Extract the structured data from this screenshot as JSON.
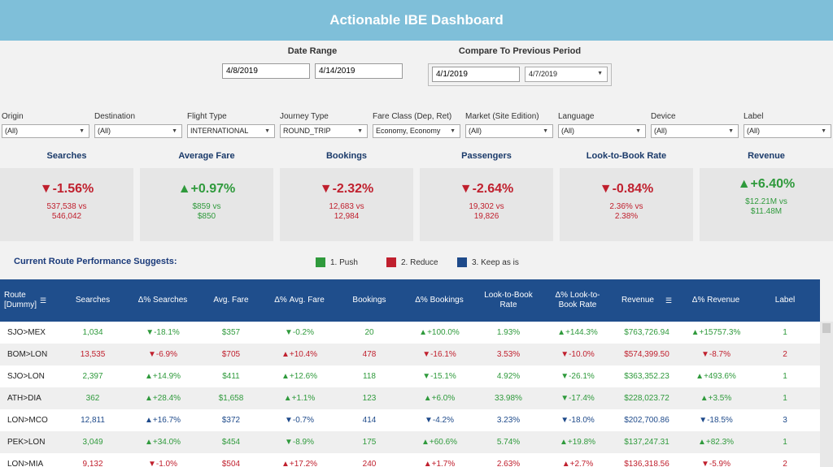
{
  "title": "Actionable IBE Dashboard",
  "date_range": {
    "label": "Date Range",
    "start": "4/8/2019",
    "end": "4/14/2019"
  },
  "compare": {
    "label": "Compare To Previous Period",
    "start": "4/1/2019",
    "end": "4/7/2019"
  },
  "filters": [
    {
      "label": "Origin",
      "value": "(All)"
    },
    {
      "label": "Destination",
      "value": "(All)"
    },
    {
      "label": "Flight Type",
      "value": "INTERNATIONAL"
    },
    {
      "label": "Journey Type",
      "value": "ROUND_TRIP"
    },
    {
      "label": "Fare Class (Dep, Ret)",
      "value": "Economy, Economy"
    },
    {
      "label": "Market (Site Edition)",
      "value": "(All)"
    },
    {
      "label": "Language",
      "value": "(All)"
    },
    {
      "label": "Device",
      "value": "(All)"
    },
    {
      "label": "Label",
      "value": "(All)"
    }
  ],
  "kpis": [
    {
      "title": "Searches",
      "pct": "▼-1.56%",
      "line1": "537,538 vs",
      "line2": "546,042",
      "color": "#c0202e"
    },
    {
      "title": "Average Fare",
      "pct": "▲+0.97%",
      "line1": "$859 vs",
      "line2": "$850",
      "color": "#2f9a3c"
    },
    {
      "title": "Bookings",
      "pct": "▼-2.32%",
      "line1": "12,683 vs",
      "line2": "12,984",
      "color": "#c0202e"
    },
    {
      "title": "Passengers",
      "pct": "▼-2.64%",
      "line1": "19,302  vs",
      "line2": "19,826",
      "color": "#c0202e"
    },
    {
      "title": "Look-to-Book Rate",
      "pct": "▼-0.84%",
      "line1": "2.36% vs",
      "line2": "2.38%",
      "color": "#c0202e"
    },
    {
      "title": "Revenue",
      "pct": "▲+6.40%",
      "line1": "$12.21M vs",
      "line2": "$11.48M",
      "color": "#2f9a3c"
    }
  ],
  "suggest_label": "Current Route Performance Suggests:",
  "legend": [
    {
      "label": "1. Push",
      "color": "#2f9a3c"
    },
    {
      "label": "2. Reduce",
      "color": "#c0202e"
    },
    {
      "label": "3. Keep as is",
      "color": "#1e4a8a"
    }
  ],
  "table": {
    "headers": [
      "Route [Dummy]",
      "Searches",
      "Δ% Searches",
      "Avg. Fare",
      "Δ%  Avg. Fare",
      "Bookings",
      "Δ% Bookings",
      "Look-to-Book Rate",
      "Δ% Look-to-Book Rate",
      "Revenue",
      "Δ% Revenue",
      "Label"
    ],
    "rows": [
      {
        "c": [
          "SJO>MEX",
          "1,034",
          "▼-18.1%",
          "$357",
          "▼-0.2%",
          "20",
          "▲+100.0%",
          "1.93%",
          "▲+144.3%",
          "$763,726.94",
          "▲+15757.3%",
          "1"
        ],
        "color": "#2f9a3c"
      },
      {
        "c": [
          "BOM>LON",
          "13,535",
          "▼-6.9%",
          "$705",
          "▲+10.4%",
          "478",
          "▼-16.1%",
          "3.53%",
          "▼-10.0%",
          "$574,399.50",
          "▼-8.7%",
          "2"
        ],
        "color": "#c0202e"
      },
      {
        "c": [
          "SJO>LON",
          "2,397",
          "▲+14.9%",
          "$411",
          "▲+12.6%",
          "118",
          "▼-15.1%",
          "4.92%",
          "▼-26.1%",
          "$363,352.23",
          "▲+493.6%",
          "1"
        ],
        "color": "#2f9a3c"
      },
      {
        "c": [
          "ATH>DIA",
          "362",
          "▲+28.4%",
          "$1,658",
          "▲+1.1%",
          "123",
          "▲+6.0%",
          "33.98%",
          "▼-17.4%",
          "$228,023.72",
          "▲+3.5%",
          "1"
        ],
        "color": "#2f9a3c"
      },
      {
        "c": [
          "LON>MCO",
          "12,811",
          "▲+16.7%",
          "$372",
          "▼-0.7%",
          "414",
          "▼-4.2%",
          "3.23%",
          "▼-18.0%",
          "$202,700.86",
          "▼-18.5%",
          "3"
        ],
        "color": "#1e4a8a"
      },
      {
        "c": [
          "PEK>LON",
          "3,049",
          "▲+34.0%",
          "$454",
          "▼-8.9%",
          "175",
          "▲+60.6%",
          "5.74%",
          "▲+19.8%",
          "$137,247.31",
          "▲+82.3%",
          "1"
        ],
        "color": "#2f9a3c"
      },
      {
        "c": [
          "LON>MIA",
          "9,132",
          "▼-1.0%",
          "$504",
          "▲+17.2%",
          "240",
          "▲+1.7%",
          "2.63%",
          "▲+2.7%",
          "$136,318.56",
          "▼-5.9%",
          "2"
        ],
        "color": "#c0202e"
      }
    ]
  }
}
